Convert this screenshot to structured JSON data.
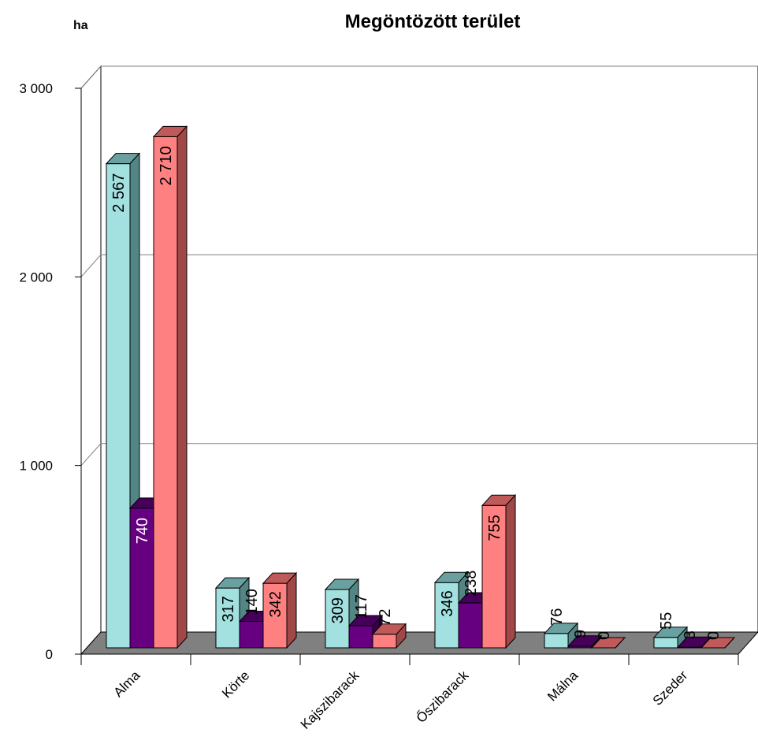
{
  "chart_data": {
    "type": "bar",
    "title": "Megöntözött terület",
    "ylabel": "ha",
    "xlabel": "",
    "categories": [
      "Alma",
      "Körte",
      "Kajszibarack",
      "Őszibarack",
      "Málna",
      "Szeder"
    ],
    "series": [
      {
        "values": [
          2567,
          317,
          309,
          346,
          76,
          55
        ]
      },
      {
        "values": [
          740,
          140,
          117,
          238,
          9,
          3
        ]
      },
      {
        "values": [
          2710,
          342,
          72,
          755,
          0,
          0
        ]
      }
    ],
    "value_labels": [
      [
        "2 567",
        "317",
        "309",
        "346",
        "76",
        "55"
      ],
      [
        "740",
        "140",
        "117",
        "238",
        "9",
        "3"
      ],
      [
        "2 710",
        "342",
        "72",
        "755",
        "0",
        "0"
      ]
    ],
    "ylim": [
      0,
      3000
    ],
    "yticks": [
      0,
      1000,
      2000,
      3000
    ],
    "ytick_labels": [
      "0",
      "1 000",
      "2 000",
      "3 000"
    ],
    "grid": true,
    "legend": "none",
    "colors": {
      "series_front": [
        "#a3e0e0",
        "#660080",
        "#ff8080"
      ],
      "series_top": [
        "#6aa0a0",
        "#47005a",
        "#c05a5a"
      ],
      "series_side": [
        "#538585",
        "#38004a",
        "#a04848"
      ],
      "value_label": [
        "#000000",
        "#ffffff",
        "#000000"
      ],
      "floor": "#808080",
      "grid": "#808080",
      "axis": "#000000"
    }
  }
}
